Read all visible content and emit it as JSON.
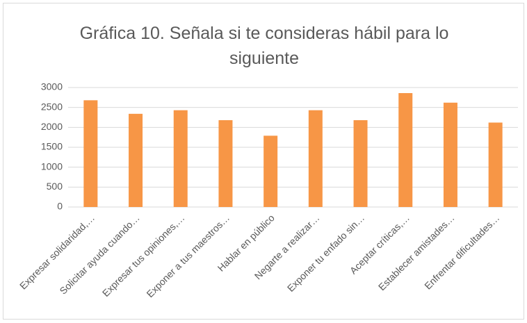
{
  "chart_data": {
    "type": "bar",
    "title": "Gráfica 10. Señala si te consideras hábil para lo siguiente",
    "categories": [
      "Expresar solidaridad,…",
      "Solicitar ayuda cuando…",
      "Expresar tus opiniones,…",
      "Exponer a tus maestros…",
      "Hablar en público",
      "Negarte a realizar…",
      "Exponer tu enfado sin…",
      "Aceptar críticas,…",
      "Establecer amistades…",
      "Enfrentar dificultades…"
    ],
    "values": [
      2680,
      2340,
      2430,
      2180,
      1790,
      2430,
      2180,
      2860,
      2620,
      2120
    ],
    "color": "#f79646",
    "ylim": [
      0,
      3000
    ],
    "yticks": [
      0,
      500,
      1000,
      1500,
      2000,
      2500,
      3000
    ],
    "grid": true
  }
}
